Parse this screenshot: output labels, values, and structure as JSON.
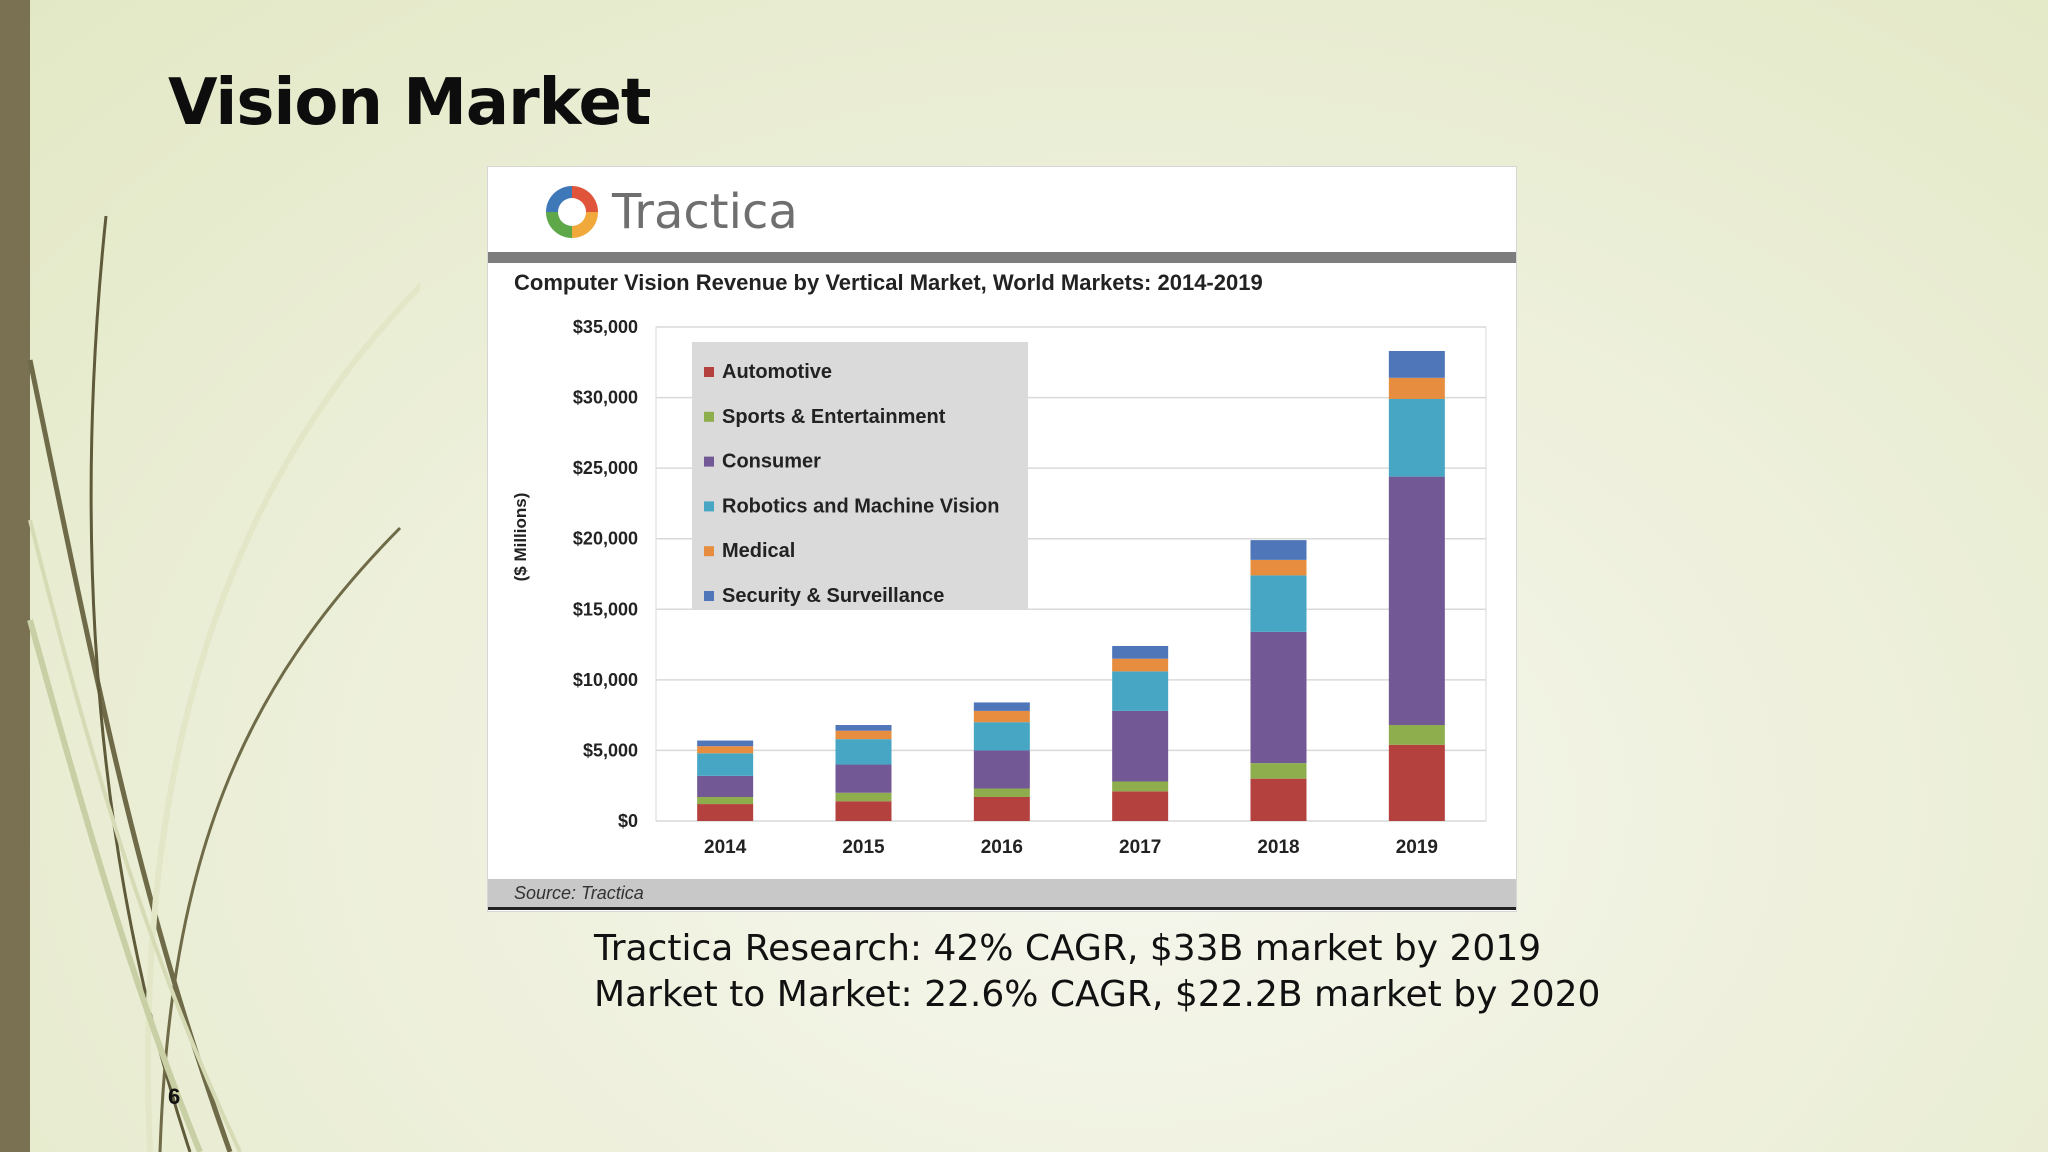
{
  "slide": {
    "title": "Vision Market",
    "number": "6",
    "caption_lines": [
      "Tractica Research: 42% CAGR, $33B market by 2019",
      "Market to Market: 22.6% CAGR, $22.2B market by 2020"
    ]
  },
  "logo": {
    "name": "Tractica"
  },
  "source": "Source: Tractica",
  "chart_data": {
    "type": "bar",
    "stacked": true,
    "title": "Computer Vision Revenue by Vertical Market, World Markets: 2014-2019",
    "xlabel": "",
    "ylabel": "($ Millions)",
    "categories": [
      "2014",
      "2015",
      "2016",
      "2017",
      "2018",
      "2019"
    ],
    "ylim": [
      0,
      35000
    ],
    "yticks": [
      0,
      5000,
      10000,
      15000,
      20000,
      25000,
      30000,
      35000
    ],
    "ytick_labels": [
      "$0",
      "$5,000",
      "$10,000",
      "$15,000",
      "$20,000",
      "$25,000",
      "$30,000",
      "$35,000"
    ],
    "grid": true,
    "legend_position": "top-left",
    "series": [
      {
        "name": "Automotive",
        "color": "#b5413f",
        "values": [
          1200,
          1400,
          1700,
          2100,
          3000,
          5400
        ]
      },
      {
        "name": "Sports & Entertainment",
        "color": "#8ead4c",
        "values": [
          500,
          600,
          600,
          700,
          1100,
          1400
        ]
      },
      {
        "name": "Consumer",
        "color": "#735896",
        "values": [
          1500,
          2000,
          2700,
          5000,
          9300,
          17600
        ]
      },
      {
        "name": "Robotics and Machine Vision",
        "color": "#46a6c3",
        "values": [
          1600,
          1800,
          2000,
          2800,
          4000,
          5500
        ]
      },
      {
        "name": "Medical",
        "color": "#e68d3f",
        "values": [
          500,
          600,
          800,
          900,
          1100,
          1500
        ]
      },
      {
        "name": "Security & Surveillance",
        "color": "#4f76b8",
        "values": [
          400,
          400,
          600,
          900,
          1400,
          1900
        ]
      }
    ]
  }
}
